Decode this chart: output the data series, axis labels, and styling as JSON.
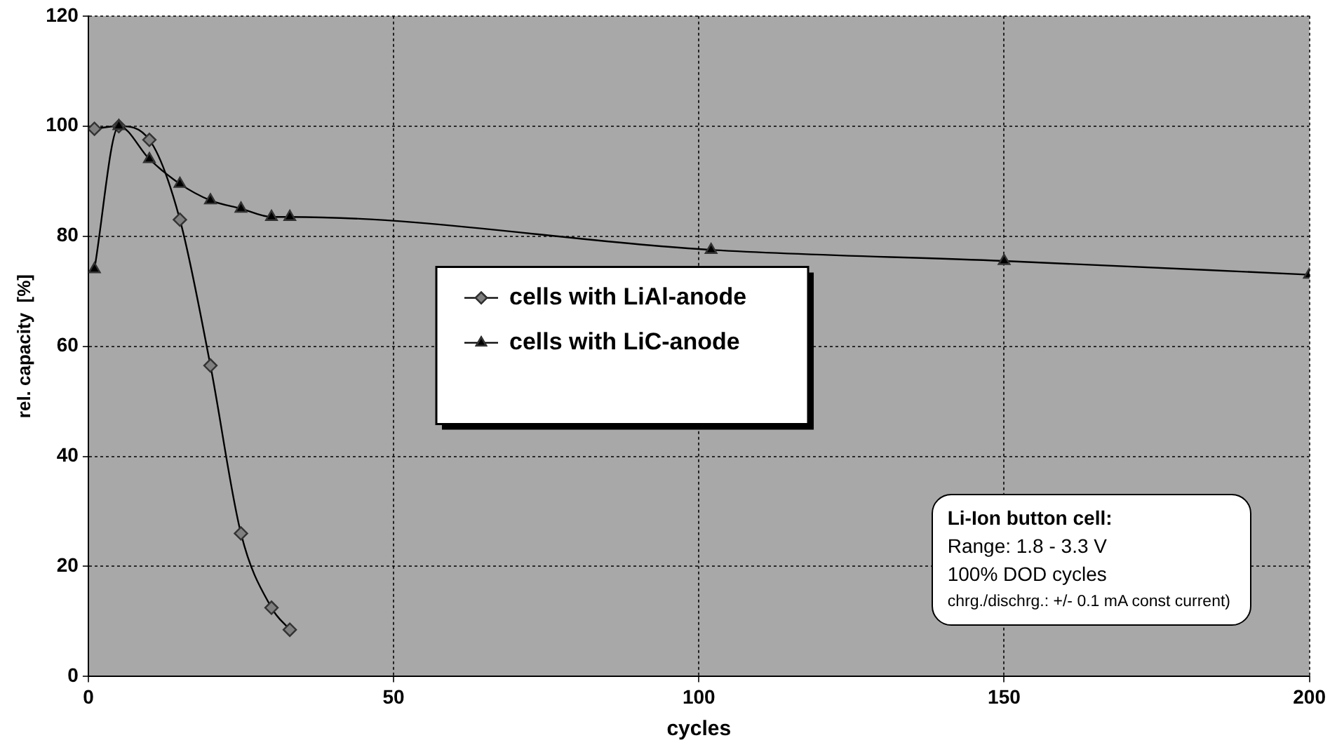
{
  "chart_data": {
    "type": "line",
    "xlabel": "cycles",
    "ylabel": "rel. capacity  [%]",
    "xlim": [
      0,
      200
    ],
    "xticks": [
      0,
      50,
      100,
      150,
      200
    ],
    "ylim": [
      0,
      120
    ],
    "yticks": [
      0,
      20,
      40,
      60,
      80,
      100,
      120
    ],
    "grid": true,
    "legend": "center",
    "line_style": "solid",
    "annotations": [
      "Li-Ion button cell:",
      "Range: 1.8 - 3.3 V",
      "100% DOD cycles",
      "chrg./dischrg.: +/- 0.1 mA const current)"
    ],
    "series": [
      {
        "name": "cells with LiAl-anode",
        "color": "#7f7f7f",
        "marker": "diamond",
        "x": [
          1,
          5,
          10,
          15,
          20,
          25,
          30,
          33
        ],
        "values": [
          99.5,
          100,
          97.5,
          83,
          56.5,
          26,
          12.5,
          8.5
        ]
      },
      {
        "name": "cells with LiC-anode",
        "color": "#000000",
        "marker": "triangle",
        "x": [
          1,
          5,
          10,
          15,
          20,
          25,
          30,
          33,
          102,
          150,
          200
        ],
        "values": [
          74,
          100,
          94,
          89.5,
          86.5,
          85,
          83.5,
          83.5,
          77.5,
          75.5,
          73
        ]
      }
    ]
  }
}
